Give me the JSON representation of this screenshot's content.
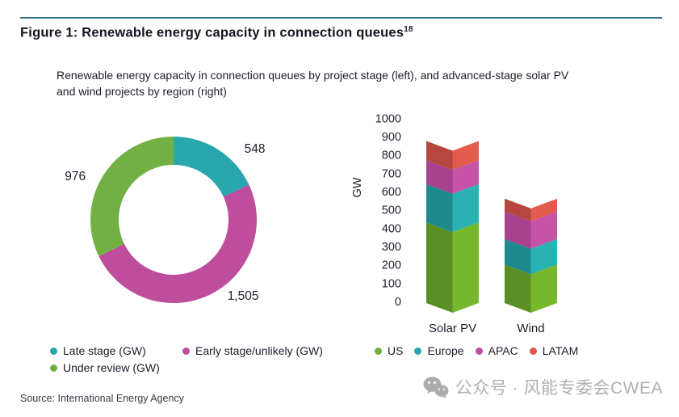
{
  "figure": {
    "title": "Figure 1: Renewable energy capacity in connection queues",
    "title_superscript": "18",
    "subtitle_lines": [
      "Renewable energy capacity in connection queues by project stage (left), and advanced-stage solar PV",
      "and wind projects by region (right)"
    ],
    "source": "Source: International Energy Agency",
    "watermark": "公众号 · 风能专委会CWEA",
    "rule_color": "#31718E"
  },
  "chart_data": [
    {
      "type": "pie",
      "subtype": "donut",
      "unit": "GW",
      "direction": "clockwise",
      "start_angle_deg": 0,
      "legend_position": "bottom",
      "slices": [
        {
          "label": "Late stage (GW)",
          "value": 548,
          "color": "#2AA7AE"
        },
        {
          "label": "Early stage/unlikely (GW)",
          "value": 1505,
          "color": "#BE4E9D"
        },
        {
          "label": "Under review (GW)",
          "value": 976,
          "color": "#72B043"
        }
      ]
    },
    {
      "type": "bar",
      "subtype": "stacked-3d",
      "title": "",
      "xlabel": "",
      "ylabel": "GW",
      "ylim": [
        0,
        1000
      ],
      "ytick_step": 100,
      "grid": false,
      "legend_position": "bottom",
      "categories": [
        "Solar PV",
        "Wind"
      ],
      "series": [
        {
          "name": "US",
          "values": [
            440,
            210
          ],
          "legend_color": "#72B043",
          "face_dark": "#5A8F26",
          "face_light": "#76B82C"
        },
        {
          "name": "Europe",
          "values": [
            210,
            140
          ],
          "legend_color": "#2AA7AE",
          "face_dark": "#1F8A8E",
          "face_light": "#29B2B1"
        },
        {
          "name": "APAC",
          "values": [
            130,
            150
          ],
          "legend_color": "#BE4E9D",
          "face_dark": "#A8418E",
          "face_light": "#C553A6"
        },
        {
          "name": "LATAM",
          "values": [
            105,
            70
          ],
          "legend_color": "#E0574B",
          "face_dark": "#B5473E",
          "face_light": "#E25B4C"
        }
      ]
    }
  ]
}
